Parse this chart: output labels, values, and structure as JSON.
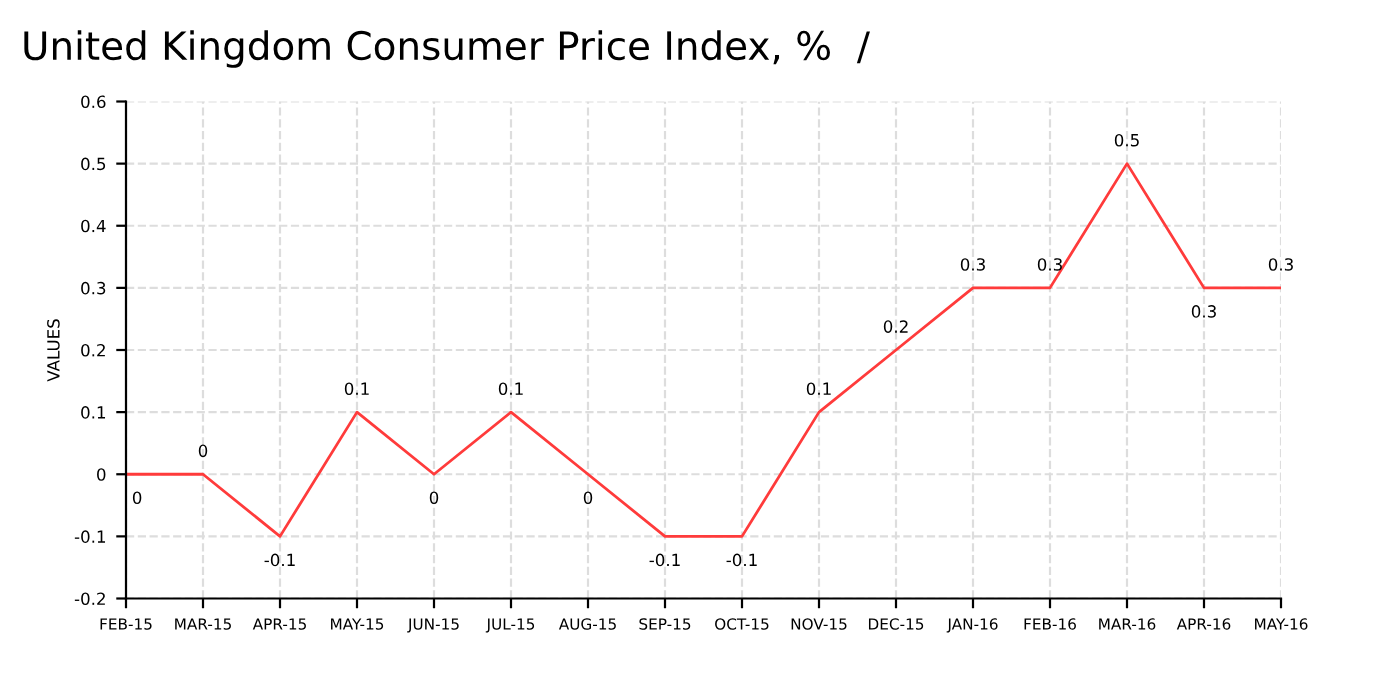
{
  "chart_data": {
    "type": "line",
    "title": "United Kingdom Consumer Price Index, %  /",
    "ylabel": "VALUES",
    "categories": [
      "FEB-15",
      "MAR-15",
      "APR-15",
      "MAY-15",
      "JUN-15",
      "JUL-15",
      "AUG-15",
      "SEP-15",
      "OCT-15",
      "NOV-15",
      "DEC-15",
      "JAN-16",
      "FEB-16",
      "MAR-16",
      "APR-16",
      "MAY-16"
    ],
    "series": [
      {
        "color": "#ff3b3b",
        "values": [
          0,
          0,
          -0.1,
          0.1,
          0,
          0.1,
          0,
          -0.1,
          -0.1,
          0.1,
          0.2,
          0.3,
          0.3,
          0.5,
          0.3,
          0.3
        ]
      }
    ],
    "ylim": [
      -0.2,
      0.6
    ],
    "yticks": [
      -0.2,
      -0.1,
      0,
      0.1,
      0.2,
      0.3,
      0.4,
      0.5,
      0.6
    ],
    "grid": true,
    "line_style": "solid",
    "marker": "none",
    "data_labels": true,
    "legend": false
  }
}
